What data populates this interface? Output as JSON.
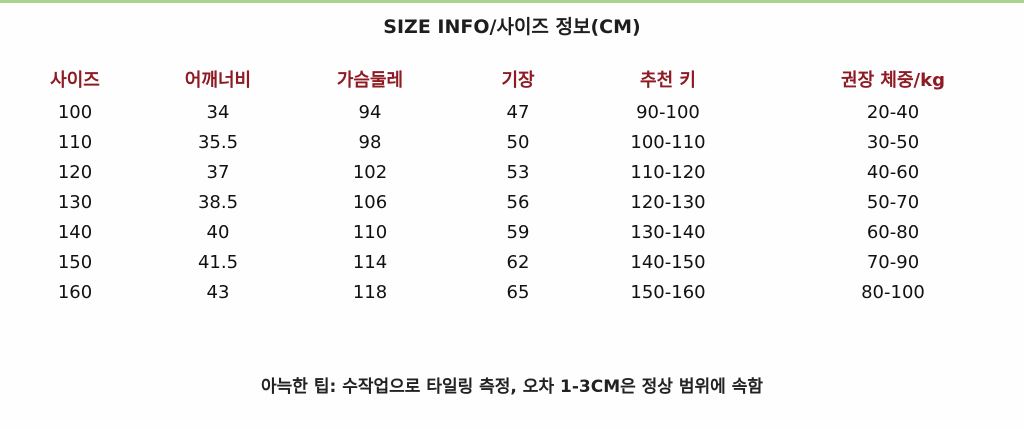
{
  "title": "SIZE INFO/사이즈 정보(CM)",
  "accent_color": "#8e1b24",
  "top_line_color": "#a9d48a",
  "table": {
    "headers": [
      "사이즈",
      "어깨너비",
      "가슴둘레",
      "기장",
      "추천 키",
      "권장 체중/kg"
    ],
    "rows": [
      [
        "100",
        "34",
        "94",
        "47",
        "90-100",
        "20-40"
      ],
      [
        "110",
        "35.5",
        "98",
        "50",
        "100-110",
        "30-50"
      ],
      [
        "120",
        "37",
        "102",
        "53",
        "110-120",
        "40-60"
      ],
      [
        "130",
        "38.5",
        "106",
        "56",
        "120-130",
        "50-70"
      ],
      [
        "140",
        "40",
        "110",
        "59",
        "130-140",
        "60-80"
      ],
      [
        "150",
        "41.5",
        "114",
        "62",
        "140-150",
        "70-90"
      ],
      [
        "160",
        "43",
        "118",
        "65",
        "150-160",
        "80-100"
      ]
    ]
  },
  "footer": "아늑한 팁: 수작업으로 타일링 측정, 오차 1-3CM은 정상 범위에 속함"
}
